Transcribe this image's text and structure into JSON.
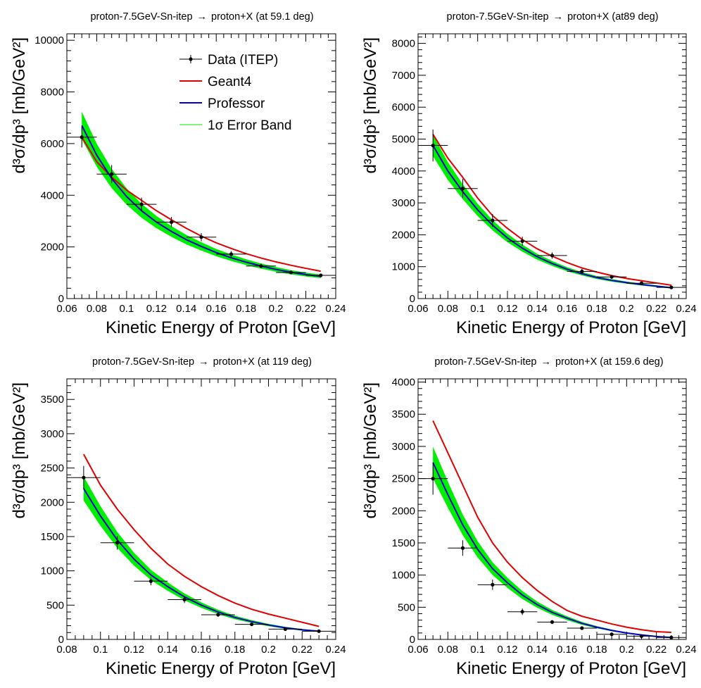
{
  "chart_data": [
    {
      "type": "line",
      "title_prefix": "proton-7.5GeV-Sn-itep",
      "title_suffix": "proton+X (at 59.1 deg)",
      "arrow": "→",
      "ylabel": "d³σ/dp³ [mb/GeV²]",
      "xlabel": "Kinetic Energy of Proton [GeV]",
      "xlim": [
        0.06,
        0.24
      ],
      "ylim": [
        0,
        10250
      ],
      "xticks": [
        0.06,
        0.08,
        0.1,
        0.12,
        0.14,
        0.16,
        0.18,
        0.2,
        0.22,
        0.24
      ],
      "xticklabels": [
        "0.06",
        "0.08",
        "0.1",
        "0.12",
        "0.14",
        "0.16",
        "0.18",
        "0.2",
        "0.22",
        "0.24"
      ],
      "yticks": [
        0,
        2000,
        4000,
        6000,
        8000,
        10000
      ],
      "yticklabels": [
        "0",
        "2000",
        "4000",
        "6000",
        "8000",
        "10000"
      ],
      "legend": {
        "position": "top-right",
        "entries": [
          {
            "key": "data",
            "label": "Data (ITEP)"
          },
          {
            "key": "geant4",
            "label": "Geant4"
          },
          {
            "key": "professor",
            "label": "Professor"
          },
          {
            "key": "band",
            "label": "1σ Error Band"
          }
        ]
      },
      "data": {
        "x": [
          0.07,
          0.09,
          0.11,
          0.13,
          0.15,
          0.17,
          0.19,
          0.21,
          0.23
        ],
        "xerr": [
          0.01,
          0.01,
          0.01,
          0.01,
          0.01,
          0.01,
          0.01,
          0.01,
          0.01
        ],
        "y": [
          6250,
          4820,
          3650,
          2960,
          2380,
          1720,
          1260,
          1010,
          900
        ],
        "yerr": [
          400,
          350,
          260,
          200,
          160,
          120,
          90,
          70,
          60
        ]
      },
      "geant4": {
        "x": [
          0.07,
          0.08,
          0.09,
          0.1,
          0.11,
          0.12,
          0.13,
          0.14,
          0.15,
          0.16,
          0.17,
          0.18,
          0.19,
          0.2,
          0.21,
          0.22,
          0.23
        ],
        "y": [
          6250,
          5300,
          4700,
          4200,
          3800,
          3400,
          3050,
          2720,
          2420,
          2160,
          1940,
          1740,
          1570,
          1420,
          1290,
          1170,
          1060
        ]
      },
      "professor": {
        "x": [
          0.07,
          0.08,
          0.09,
          0.1,
          0.11,
          0.12,
          0.13,
          0.14,
          0.15,
          0.16,
          0.17,
          0.18,
          0.19,
          0.2,
          0.21,
          0.22,
          0.23
        ],
        "y": [
          6700,
          5550,
          4650,
          3950,
          3400,
          2960,
          2600,
          2280,
          2020,
          1780,
          1580,
          1410,
          1260,
          1130,
          1020,
          930,
          860
        ]
      },
      "band_frac": 0.08
    },
    {
      "type": "line",
      "title_prefix": "proton-7.5GeV-Sn-itep",
      "title_suffix": "proton+X (at89 deg)",
      "arrow": "→",
      "ylabel": "d³σ/dp³ [mb/GeV²]",
      "xlabel": "Kinetic Energy of Proton [GeV]",
      "xlim": [
        0.06,
        0.24
      ],
      "ylim": [
        0,
        8300
      ],
      "xticks": [
        0.06,
        0.08,
        0.1,
        0.12,
        0.14,
        0.16,
        0.18,
        0.2,
        0.22,
        0.24
      ],
      "xticklabels": [
        "0.06",
        "0.08",
        "0.1",
        "0.12",
        "0.14",
        "0.16",
        "0.18",
        "0.2",
        "0.22",
        "0.24"
      ],
      "yticks": [
        0,
        1000,
        2000,
        3000,
        4000,
        5000,
        6000,
        7000,
        8000
      ],
      "yticklabels": [
        "0",
        "1000",
        "2000",
        "3000",
        "4000",
        "5000",
        "6000",
        "7000",
        "8000"
      ],
      "data": {
        "x": [
          0.07,
          0.09,
          0.11,
          0.13,
          0.15,
          0.17,
          0.19,
          0.21,
          0.23
        ],
        "xerr": [
          0.01,
          0.01,
          0.01,
          0.01,
          0.01,
          0.01,
          0.01,
          0.01,
          0.01
        ],
        "y": [
          4800,
          3450,
          2450,
          1800,
          1350,
          850,
          680,
          480,
          350
        ],
        "yerr": [
          500,
          300,
          200,
          140,
          100,
          80,
          60,
          50,
          40
        ]
      },
      "geant4": {
        "x": [
          0.07,
          0.08,
          0.09,
          0.1,
          0.11,
          0.12,
          0.13,
          0.14,
          0.15,
          0.16,
          0.17,
          0.18,
          0.19,
          0.2,
          0.21,
          0.22,
          0.23
        ],
        "y": [
          5150,
          4400,
          3800,
          3150,
          2600,
          2200,
          1850,
          1560,
          1330,
          1130,
          960,
          830,
          720,
          630,
          560,
          490,
          420
        ]
      },
      "professor": {
        "x": [
          0.07,
          0.08,
          0.09,
          0.1,
          0.11,
          0.12,
          0.13,
          0.14,
          0.15,
          0.16,
          0.17,
          0.18,
          0.19,
          0.2,
          0.21,
          0.22,
          0.23
        ],
        "y": [
          4800,
          4000,
          3350,
          2780,
          2300,
          1900,
          1580,
          1310,
          1100,
          920,
          780,
          660,
          570,
          500,
          440,
          390,
          340
        ]
      },
      "band_frac": 0.07
    },
    {
      "type": "line",
      "title_prefix": "proton-7.5GeV-Sn-itep",
      "title_suffix": "proton+X (at 119 deg)",
      "arrow": "→",
      "ylabel": "d³σ/dp³ [mb/GeV²]",
      "xlabel": "Kinetic Energy of Proton [GeV]",
      "xlim": [
        0.08,
        0.24
      ],
      "ylim": [
        0,
        3800
      ],
      "xticks": [
        0.08,
        0.1,
        0.12,
        0.14,
        0.16,
        0.18,
        0.2,
        0.22,
        0.24
      ],
      "xticklabels": [
        "0.08",
        "0.1",
        "0.12",
        "0.14",
        "0.16",
        "0.18",
        "0.2",
        "0.22",
        "0.24"
      ],
      "yticks": [
        0,
        500,
        1000,
        1500,
        2000,
        2500,
        3000,
        3500
      ],
      "yticklabels": [
        "0",
        "500",
        "1000",
        "1500",
        "2000",
        "2500",
        "3000",
        "3500"
      ],
      "data": {
        "x": [
          0.09,
          0.11,
          0.13,
          0.15,
          0.17,
          0.19,
          0.21,
          0.23
        ],
        "xerr": [
          0.01,
          0.01,
          0.01,
          0.01,
          0.01,
          0.01,
          0.01,
          0.01
        ],
        "y": [
          2360,
          1410,
          850,
          580,
          360,
          220,
          150,
          120
        ],
        "yerr": [
          170,
          100,
          60,
          50,
          30,
          20,
          20,
          15
        ]
      },
      "geant4": {
        "x": [
          0.09,
          0.1,
          0.11,
          0.12,
          0.13,
          0.14,
          0.15,
          0.16,
          0.17,
          0.18,
          0.19,
          0.2,
          0.21,
          0.22,
          0.23
        ],
        "y": [
          2700,
          2250,
          1900,
          1600,
          1330,
          1100,
          920,
          770,
          640,
          530,
          440,
          370,
          310,
          250,
          190
        ]
      },
      "professor": {
        "x": [
          0.09,
          0.1,
          0.11,
          0.12,
          0.13,
          0.14,
          0.15,
          0.16,
          0.17,
          0.18,
          0.19,
          0.2,
          0.21,
          0.22,
          0.23
        ],
        "y": [
          2200,
          1800,
          1450,
          1170,
          940,
          770,
          620,
          500,
          400,
          320,
          260,
          210,
          170,
          140,
          120
        ]
      },
      "band_frac": 0.08
    },
    {
      "type": "line",
      "title_prefix": "proton-7.5GeV-Sn-itep",
      "title_suffix": "proton+X (at 159.6 deg)",
      "arrow": "→",
      "ylabel": "d³σ/dp³ [mb/GeV²]",
      "xlabel": "Kinetic Energy of Proton [GeV]",
      "xlim": [
        0.06,
        0.24
      ],
      "ylim": [
        0,
        4050
      ],
      "xticks": [
        0.06,
        0.08,
        0.1,
        0.12,
        0.14,
        0.16,
        0.18,
        0.2,
        0.22,
        0.24
      ],
      "xticklabels": [
        "0.06",
        "0.08",
        "0.1",
        "0.12",
        "0.14",
        "0.16",
        "0.18",
        "0.2",
        "0.22",
        "0.24"
      ],
      "yticks": [
        0,
        500,
        1000,
        1500,
        2000,
        2500,
        3000,
        3500,
        4000
      ],
      "yticklabels": [
        "0",
        "500",
        "1000",
        "1500",
        "2000",
        "2500",
        "3000",
        "3500",
        "4000"
      ],
      "data": {
        "x": [
          0.07,
          0.09,
          0.11,
          0.13,
          0.15,
          0.17,
          0.19,
          0.21,
          0.23
        ],
        "xerr": [
          0.01,
          0.01,
          0.01,
          0.01,
          0.01,
          0.01,
          0.01,
          0.01,
          0.01
        ],
        "y": [
          2500,
          1420,
          850,
          430,
          270,
          175,
          80,
          50,
          30
        ],
        "yerr": [
          250,
          120,
          80,
          50,
          30,
          20,
          15,
          10,
          8
        ]
      },
      "geant4": {
        "x": [
          0.07,
          0.08,
          0.09,
          0.1,
          0.11,
          0.12,
          0.13,
          0.14,
          0.15,
          0.16,
          0.17,
          0.18,
          0.19,
          0.2,
          0.21,
          0.22,
          0.23
        ],
        "y": [
          3400,
          2900,
          2400,
          1900,
          1500,
          1200,
          960,
          760,
          590,
          450,
          360,
          300,
          240,
          190,
          150,
          120,
          110
        ]
      },
      "professor": {
        "x": [
          0.07,
          0.08,
          0.09,
          0.1,
          0.11,
          0.12,
          0.13,
          0.14,
          0.15,
          0.16,
          0.17,
          0.18,
          0.19,
          0.2,
          0.21,
          0.22,
          0.23
        ],
        "y": [
          2750,
          2250,
          1780,
          1400,
          1100,
          880,
          690,
          540,
          420,
          330,
          250,
          190,
          140,
          100,
          70,
          45,
          30
        ]
      },
      "band_frac": 0.09
    }
  ],
  "colors": {
    "geant4": "#e00000",
    "professor": "#0000cc",
    "band": "#00ee00",
    "data": "#000000"
  }
}
